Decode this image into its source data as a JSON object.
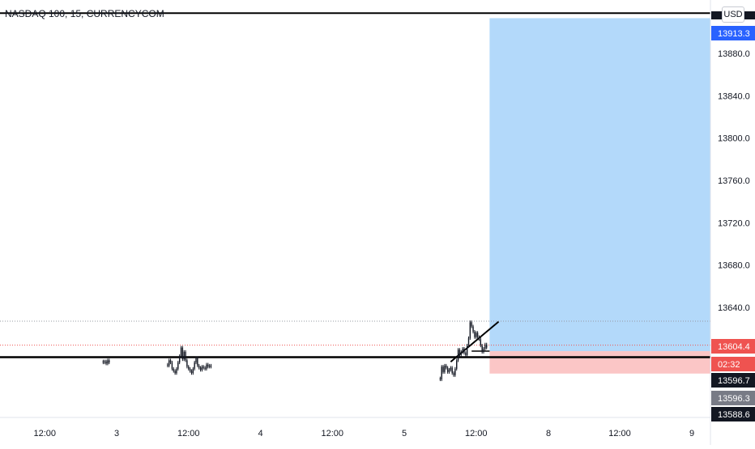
{
  "symbol_title": "NASDAQ 100, 15, CURRENCYCOM",
  "currency_button": "USD",
  "colors": {
    "up": "#26a69a",
    "down": "#ef5350",
    "profit_zone": "#b3d9fa",
    "loss_zone": "#fbc6c6",
    "candle": "#131722",
    "current_price_tag": "#ef5350",
    "target_tag": "#2962ff",
    "dark_tag": "#131722",
    "grey_tag": "#787b86"
  },
  "chart_data": {
    "type": "candlestick",
    "title": "NASDAQ 100, 15, CURRENCYCOM",
    "y_ticks": [
      "13640.0",
      "13680.0",
      "13720.0",
      "13760.0",
      "13800.0",
      "13840.0",
      "13880.0"
    ],
    "x_ticks": [
      "12:00",
      "3",
      "12:00",
      "4",
      "12:00",
      "5",
      "12:00",
      "8",
      "12:00",
      "9"
    ],
    "price_tags": [
      {
        "label": "13913.3",
        "role": "target"
      },
      {
        "label": "13604.4",
        "role": "current-price"
      },
      {
        "label": "02:32",
        "role": "countdown"
      },
      {
        "label": "13596.7",
        "role": "level"
      },
      {
        "label": "13596.3",
        "role": "level"
      },
      {
        "label": "13588.6",
        "role": "level"
      }
    ],
    "levels": {
      "top_line": 13918.0,
      "support_line": 13593.0,
      "dotted_high": 13627.0,
      "dotted_current": 13604.4
    },
    "long_position": {
      "entry": 13598.7,
      "target": 13913.3,
      "stop": 13577.5,
      "start_date": "5 14:15",
      "end_date": "9 00:00"
    },
    "trendline": {
      "from": {
        "date": "5 07:45",
        "price": 13588.6
      },
      "to": {
        "date": "5 15:45",
        "price": 13626.5
      }
    },
    "candle_clusters": [
      {
        "start": "2 21:45",
        "count": 5,
        "prices": [
          13588,
          13589,
          13587,
          13590,
          13588
        ]
      },
      {
        "start": "3 08:30",
        "count": 30,
        "prices": [
          13585,
          13590,
          13588,
          13582,
          13580,
          13578,
          13582,
          13588,
          13594,
          13602,
          13591,
          13598,
          13590,
          13584,
          13582,
          13580,
          13578,
          13582,
          13588,
          13592,
          13585,
          13583,
          13581,
          13584,
          13583,
          13582,
          13586,
          13584,
          13585,
          13584
        ]
      },
      {
        "start": "5 06:00",
        "count": 32,
        "prices": [
          13572,
          13584,
          13579,
          13585,
          13583,
          13579,
          13581,
          13583,
          13578,
          13576,
          13582,
          13590,
          13600,
          13595,
          13598,
          13601,
          13597,
          13595,
          13604,
          13611,
          13626,
          13622,
          13617,
          13612,
          13616,
          13612,
          13610,
          13604,
          13598,
          13601,
          13605,
          13602
        ]
      }
    ]
  }
}
